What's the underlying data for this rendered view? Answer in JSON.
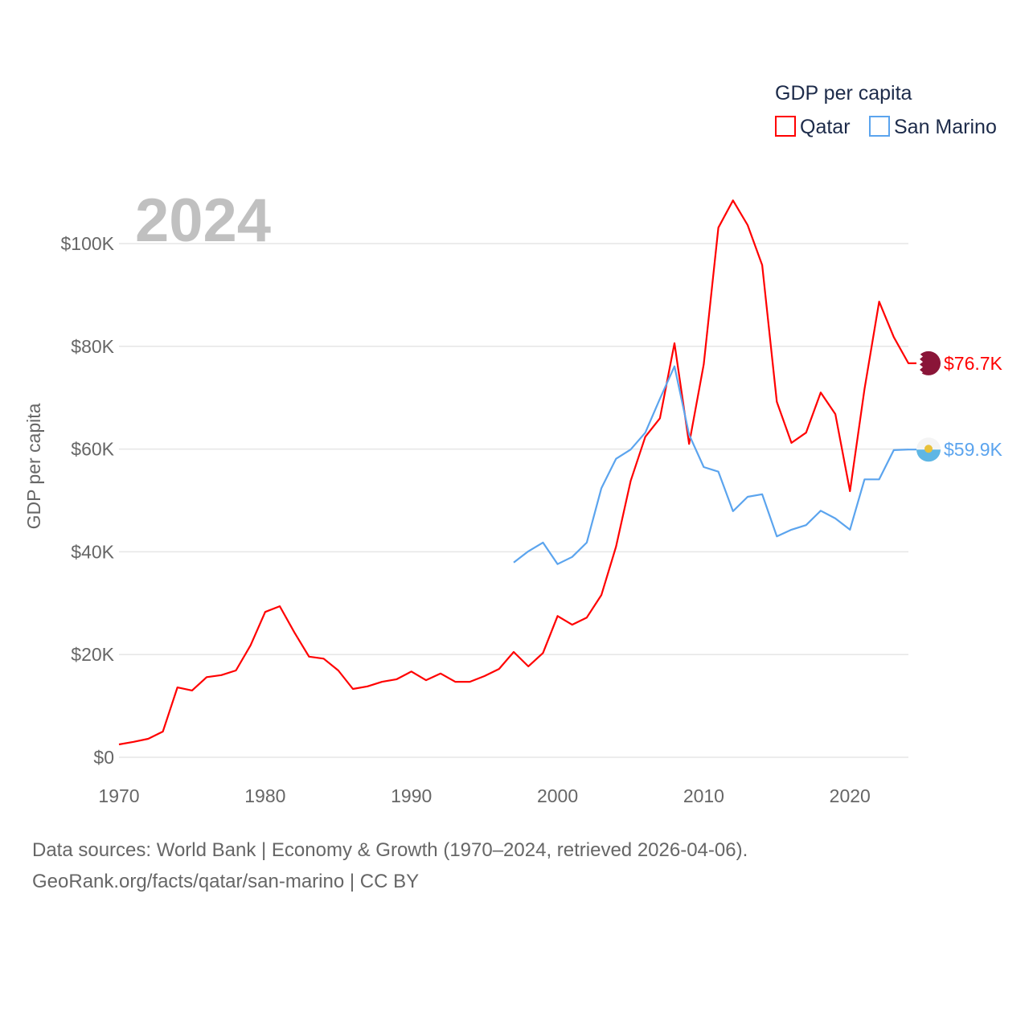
{
  "chart_data": {
    "type": "line",
    "year_label": "2024",
    "ylabel": "GDP per capita",
    "legend": {
      "title": "GDP per capita",
      "position": "top-right"
    },
    "xlim": [
      1970,
      2024
    ],
    "ylim": [
      0,
      100000
    ],
    "x_ticks": [
      "1970",
      "1980",
      "1990",
      "2000",
      "2010",
      "2020"
    ],
    "y_ticks": [
      {
        "value": 0,
        "label": "$0"
      },
      {
        "value": 20000,
        "label": "$20K"
      },
      {
        "value": 40000,
        "label": "$40K"
      },
      {
        "value": 60000,
        "label": "$60K"
      },
      {
        "value": 80000,
        "label": "$80K"
      },
      {
        "value": 100000,
        "label": "$100K"
      }
    ],
    "grid": true,
    "series": [
      {
        "name": "Qatar",
        "color": "#ff0000",
        "flag": "qatar-flag",
        "end_label": "$76.7K",
        "start_year": 1970,
        "values": [
          2500,
          3000,
          3600,
          5000,
          13600,
          13000,
          15600,
          16000,
          16900,
          21800,
          28300,
          29400,
          24300,
          19600,
          19200,
          16900,
          13300,
          13800,
          14700,
          15200,
          16700,
          15000,
          16300,
          14700,
          14700,
          15800,
          17200,
          20500,
          17700,
          20300,
          27500,
          25800,
          27200,
          31600,
          41000,
          53800,
          62400,
          66000,
          80600,
          61000,
          76500,
          103100,
          108400,
          103600,
          95800,
          69200,
          61200,
          63200,
          71000,
          66800,
          51800,
          71700,
          88700,
          81800,
          76700
        ]
      },
      {
        "name": "San Marino",
        "color": "#5ba4ee",
        "flag": "san-marino-flag",
        "end_label": "$59.9K",
        "start_year": 1997,
        "values": [
          37900,
          40100,
          41800,
          37600,
          39000,
          41800,
          52400,
          58100,
          59900,
          63200,
          69800,
          76100,
          62800,
          56500,
          55600,
          47900,
          50700,
          51200,
          43000,
          44300,
          45200,
          48000,
          46500,
          44300,
          54100,
          54100,
          59800,
          59900
        ]
      }
    ]
  },
  "footer": {
    "line1": "Data sources: World Bank | Economy & Growth (1970–2024, retrieved 2026-04-06).",
    "line2": "GeoRank.org/facts/qatar/san-marino | CC BY"
  }
}
